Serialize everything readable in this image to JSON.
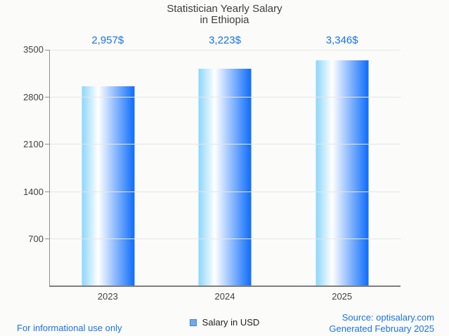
{
  "title": {
    "line1": "Statistician Yearly Salary",
    "line2": "in Ethiopia"
  },
  "chart_data": {
    "type": "bar",
    "title": "Statistician Yearly Salary in Ethiopia",
    "categories": [
      "2023",
      "2024",
      "2025"
    ],
    "series": [
      {
        "name": "Salary in USD",
        "values": [
          2957,
          3223,
          3346
        ]
      }
    ],
    "value_labels": [
      "2,957$",
      "3,223$",
      "3,346$"
    ],
    "xlabel": "",
    "ylabel": "",
    "ylim": [
      0,
      3500
    ],
    "yticks": [
      700,
      1400,
      2100,
      2800,
      3500
    ],
    "grid": true,
    "legend_position": "bottom"
  },
  "legend": {
    "label": "Salary in USD"
  },
  "footer": {
    "disclaimer": "For informational use only",
    "source": "Source: optisalary.com",
    "generated": "Generated February 2025"
  },
  "colors": {
    "accent_blue": "#1a73e8",
    "bar_gradient_left": "#8bd6fb",
    "bar_gradient_mid": "#ffffff",
    "bar_gradient_right": "#0d6cfb",
    "legend_marker_fill": "#6fa8f0",
    "legend_marker_border": "#4a7fd4",
    "grid_line": "#e6e6e4",
    "axis_line": "#8f8f8f",
    "text_dark": "#3d3d3d",
    "background": "#fbfbf9"
  }
}
